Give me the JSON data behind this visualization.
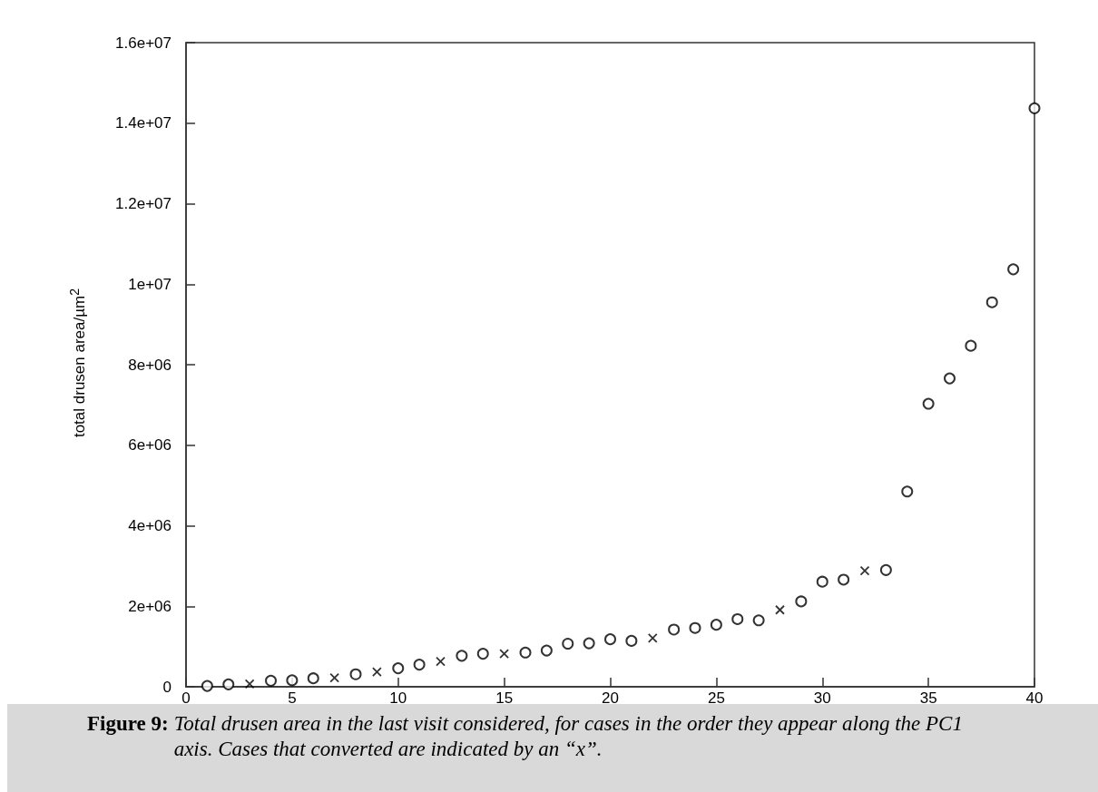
{
  "chart_data": {
    "type": "scatter",
    "ylabel": "total drusen area/µm$^{2}$",
    "annotations": [
      "Figure 9: Total drusen area in the last visit considered, for cases in the order they appear along the PC1 axis. Cases that converted are indicated by an “x”."
    ],
    "series": [
      {
        "color": "#000000",
        "marker": "circle",
        "x": [
          1,
          2,
          4,
          5,
          6,
          8,
          10,
          11,
          13,
          14,
          16,
          17,
          18,
          19,
          20,
          21,
          23,
          24,
          25,
          26,
          27,
          29,
          30,
          31,
          33,
          34,
          35,
          36,
          37,
          38,
          39,
          40
        ],
        "values": [
          20000,
          60000,
          150000,
          160000,
          210000,
          310000,
          460000,
          550000,
          770000,
          820000,
          850000,
          900000,
          1070000,
          1080000,
          1180000,
          1140000,
          1420000,
          1460000,
          1540000,
          1680000,
          1650000,
          2120000,
          2610000,
          2660000,
          2900000,
          4850000,
          7030000,
          7660000,
          8470000,
          9550000,
          10370000,
          14370000
        ]
      },
      {
        "color": "#000000",
        "marker": "cross",
        "x": [
          3,
          7,
          9,
          12,
          15,
          22,
          28,
          32
        ],
        "values": [
          70000,
          220000,
          370000,
          630000,
          820000,
          1210000,
          1910000,
          2880000
        ]
      }
    ],
    "xlim": [
      0,
      40
    ],
    "xticks": [
      0,
      5,
      10,
      15,
      20,
      25,
      30,
      35,
      40
    ],
    "ylim": [
      0,
      16000000
    ],
    "yticks": [
      0,
      {
        "value": 2000000,
        "label": "2e+06"
      },
      {
        "value": 4000000,
        "label": "4e+06"
      },
      {
        "value": 6000000,
        "label": "6e+06"
      },
      {
        "value": 8000000,
        "label": "8e+06"
      },
      {
        "value": 10000000,
        "label": "1e+07"
      },
      {
        "value": 12000000,
        "label": "1.2e+07"
      },
      {
        "value": 14000000,
        "label": "1.4e+07"
      },
      {
        "value": 16000000,
        "label": "1.6e+07"
      }
    ],
    "grid": false
  }
}
